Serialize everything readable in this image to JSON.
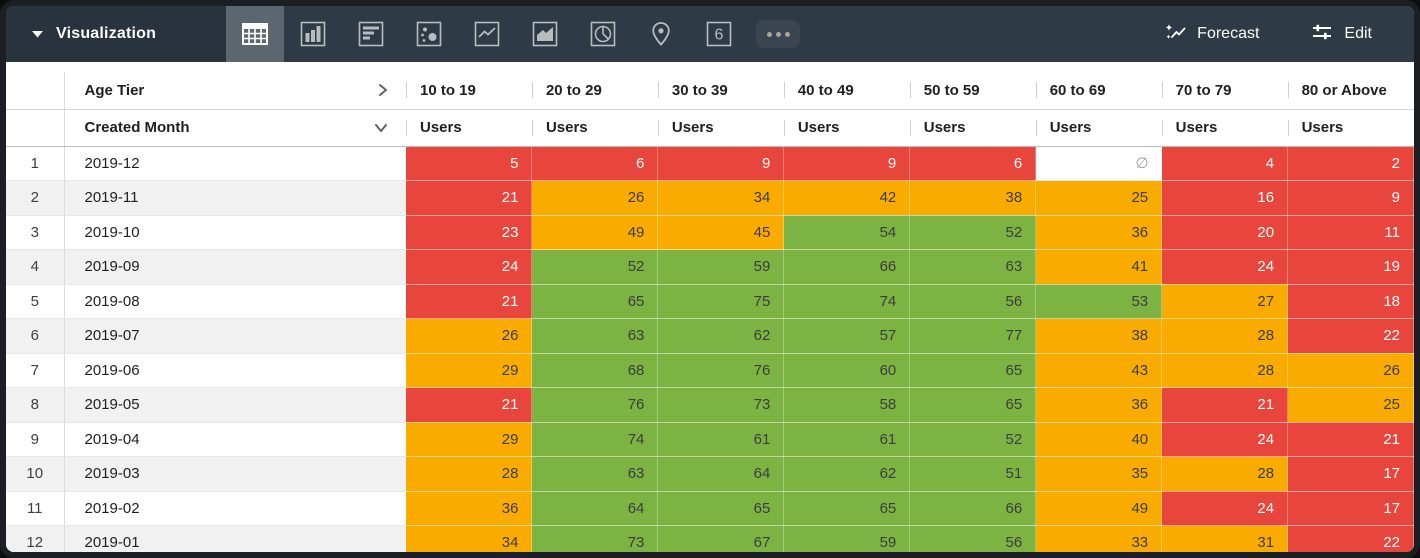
{
  "topbar": {
    "title": "Visualization",
    "viz_types": [
      {
        "name": "table",
        "selected": true
      },
      {
        "name": "column-chart",
        "selected": false
      },
      {
        "name": "bar-chart",
        "selected": false
      },
      {
        "name": "scatter",
        "selected": false
      },
      {
        "name": "line-chart",
        "selected": false
      },
      {
        "name": "area-chart",
        "selected": false
      },
      {
        "name": "pie-chart",
        "selected": false
      },
      {
        "name": "map",
        "selected": false
      },
      {
        "name": "single-value",
        "selected": false
      },
      {
        "name": "more",
        "selected": false
      }
    ],
    "single_value_label": "6",
    "forecast_label": "Forecast",
    "edit_label": "Edit"
  },
  "table": {
    "pivot_field": "Age Tier",
    "row_field": "Created Month",
    "measure_label": "Users",
    "age_tiers": [
      "10 to 19",
      "20 to 29",
      "30 to 39",
      "40 to 49",
      "50 to 59",
      "60 to 69",
      "70 to 79",
      "80 or Above"
    ],
    "null_symbol": "∅",
    "rows": [
      {
        "index": 1,
        "month": "2019-12",
        "values": [
          {
            "v": "5",
            "c": "red"
          },
          {
            "v": "6",
            "c": "red"
          },
          {
            "v": "9",
            "c": "red"
          },
          {
            "v": "9",
            "c": "red"
          },
          {
            "v": "6",
            "c": "red"
          },
          {
            "v": "∅",
            "c": "null"
          },
          {
            "v": "4",
            "c": "red"
          },
          {
            "v": "2",
            "c": "red"
          }
        ]
      },
      {
        "index": 2,
        "month": "2019-11",
        "values": [
          {
            "v": "21",
            "c": "red"
          },
          {
            "v": "26",
            "c": "orange"
          },
          {
            "v": "34",
            "c": "orange"
          },
          {
            "v": "42",
            "c": "orange"
          },
          {
            "v": "38",
            "c": "orange"
          },
          {
            "v": "25",
            "c": "orange"
          },
          {
            "v": "16",
            "c": "red"
          },
          {
            "v": "9",
            "c": "red"
          }
        ]
      },
      {
        "index": 3,
        "month": "2019-10",
        "values": [
          {
            "v": "23",
            "c": "red"
          },
          {
            "v": "49",
            "c": "orange"
          },
          {
            "v": "45",
            "c": "orange"
          },
          {
            "v": "54",
            "c": "green"
          },
          {
            "v": "52",
            "c": "green"
          },
          {
            "v": "36",
            "c": "orange"
          },
          {
            "v": "20",
            "c": "red"
          },
          {
            "v": "11",
            "c": "red"
          }
        ]
      },
      {
        "index": 4,
        "month": "2019-09",
        "values": [
          {
            "v": "24",
            "c": "red"
          },
          {
            "v": "52",
            "c": "green"
          },
          {
            "v": "59",
            "c": "green"
          },
          {
            "v": "66",
            "c": "green"
          },
          {
            "v": "63",
            "c": "green"
          },
          {
            "v": "41",
            "c": "orange"
          },
          {
            "v": "24",
            "c": "red"
          },
          {
            "v": "19",
            "c": "red"
          }
        ]
      },
      {
        "index": 5,
        "month": "2019-08",
        "values": [
          {
            "v": "21",
            "c": "red"
          },
          {
            "v": "65",
            "c": "green"
          },
          {
            "v": "75",
            "c": "green"
          },
          {
            "v": "74",
            "c": "green"
          },
          {
            "v": "56",
            "c": "green"
          },
          {
            "v": "53",
            "c": "green"
          },
          {
            "v": "27",
            "c": "orange"
          },
          {
            "v": "18",
            "c": "red"
          }
        ]
      },
      {
        "index": 6,
        "month": "2019-07",
        "values": [
          {
            "v": "26",
            "c": "orange"
          },
          {
            "v": "63",
            "c": "green"
          },
          {
            "v": "62",
            "c": "green"
          },
          {
            "v": "57",
            "c": "green"
          },
          {
            "v": "77",
            "c": "green"
          },
          {
            "v": "38",
            "c": "orange"
          },
          {
            "v": "28",
            "c": "orange"
          },
          {
            "v": "22",
            "c": "red"
          }
        ]
      },
      {
        "index": 7,
        "month": "2019-06",
        "values": [
          {
            "v": "29",
            "c": "orange"
          },
          {
            "v": "68",
            "c": "green"
          },
          {
            "v": "76",
            "c": "green"
          },
          {
            "v": "60",
            "c": "green"
          },
          {
            "v": "65",
            "c": "green"
          },
          {
            "v": "43",
            "c": "orange"
          },
          {
            "v": "28",
            "c": "orange"
          },
          {
            "v": "26",
            "c": "orange"
          }
        ]
      },
      {
        "index": 8,
        "month": "2019-05",
        "values": [
          {
            "v": "21",
            "c": "red"
          },
          {
            "v": "76",
            "c": "green"
          },
          {
            "v": "73",
            "c": "green"
          },
          {
            "v": "58",
            "c": "green"
          },
          {
            "v": "65",
            "c": "green"
          },
          {
            "v": "36",
            "c": "orange"
          },
          {
            "v": "21",
            "c": "red"
          },
          {
            "v": "25",
            "c": "orange"
          }
        ]
      },
      {
        "index": 9,
        "month": "2019-04",
        "values": [
          {
            "v": "29",
            "c": "orange"
          },
          {
            "v": "74",
            "c": "green"
          },
          {
            "v": "61",
            "c": "green"
          },
          {
            "v": "61",
            "c": "green"
          },
          {
            "v": "52",
            "c": "green"
          },
          {
            "v": "40",
            "c": "orange"
          },
          {
            "v": "24",
            "c": "red"
          },
          {
            "v": "21",
            "c": "red"
          }
        ]
      },
      {
        "index": 10,
        "month": "2019-03",
        "values": [
          {
            "v": "28",
            "c": "orange"
          },
          {
            "v": "63",
            "c": "green"
          },
          {
            "v": "64",
            "c": "green"
          },
          {
            "v": "62",
            "c": "green"
          },
          {
            "v": "51",
            "c": "green"
          },
          {
            "v": "35",
            "c": "orange"
          },
          {
            "v": "28",
            "c": "orange"
          },
          {
            "v": "17",
            "c": "red"
          }
        ]
      },
      {
        "index": 11,
        "month": "2019-02",
        "values": [
          {
            "v": "36",
            "c": "orange"
          },
          {
            "v": "64",
            "c": "green"
          },
          {
            "v": "65",
            "c": "green"
          },
          {
            "v": "65",
            "c": "green"
          },
          {
            "v": "66",
            "c": "green"
          },
          {
            "v": "49",
            "c": "orange"
          },
          {
            "v": "24",
            "c": "red"
          },
          {
            "v": "17",
            "c": "red"
          }
        ]
      },
      {
        "index": 12,
        "month": "2019-01",
        "values": [
          {
            "v": "34",
            "c": "orange"
          },
          {
            "v": "73",
            "c": "green"
          },
          {
            "v": "67",
            "c": "green"
          },
          {
            "v": "59",
            "c": "green"
          },
          {
            "v": "56",
            "c": "green"
          },
          {
            "v": "33",
            "c": "orange"
          },
          {
            "v": "31",
            "c": "orange"
          },
          {
            "v": "22",
            "c": "red"
          }
        ]
      }
    ]
  },
  "colors": {
    "red": "#e8453c",
    "orange": "#f9ab00",
    "green": "#7cb342",
    "null_bg": "#ffffff",
    "topbar_bg": "#2e3a45",
    "topbar_title_bg": "#28333d",
    "selected_viz_bg": "#5c666f",
    "stripe": "#f1f1f1"
  }
}
